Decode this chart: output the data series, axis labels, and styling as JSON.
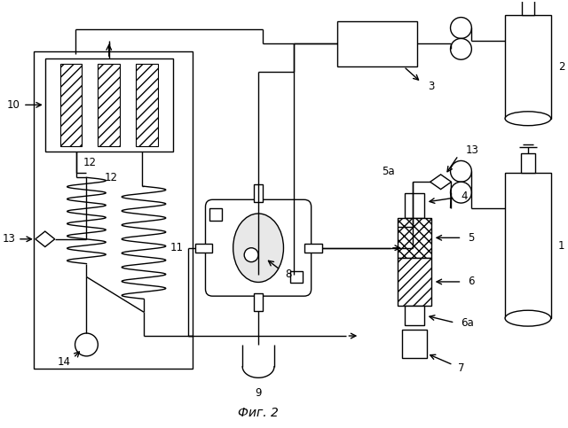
{
  "title": "Фиг. 2",
  "bg_color": "#ffffff",
  "lc": "#000000",
  "lw": 1.0,
  "fs": 8.5,
  "figsize": [
    6.4,
    4.83
  ],
  "dpi": 100
}
